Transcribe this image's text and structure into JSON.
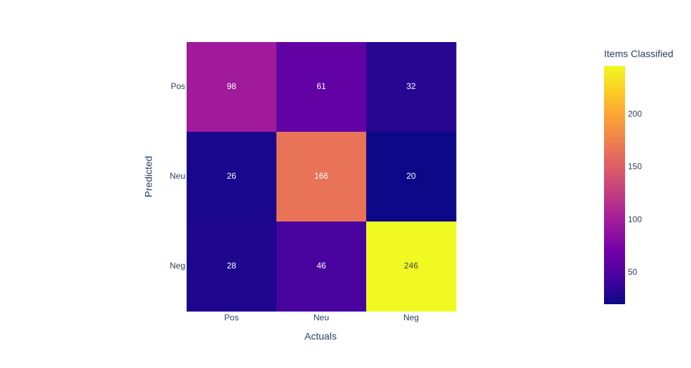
{
  "chart_data": {
    "type": "heatmap",
    "x_categories": [
      "Pos",
      "Neu",
      "Neg"
    ],
    "y_categories": [
      "Pos",
      "Neu",
      "Neg"
    ],
    "values": [
      [
        98,
        61,
        32
      ],
      [
        26,
        166,
        20
      ],
      [
        28,
        46,
        246
      ]
    ],
    "xlabel": "Actuals",
    "ylabel": "Predicted",
    "colorbar_title": "Items Classified",
    "zlim": [
      20,
      246
    ],
    "zticks": [
      50,
      100,
      150,
      200
    ],
    "colorscale": [
      "#0d0887",
      "#46039f",
      "#7201a8",
      "#9c179e",
      "#bd3786",
      "#d8576b",
      "#ed7953",
      "#fb9f3a",
      "#fdca26",
      "#f0f921"
    ]
  }
}
